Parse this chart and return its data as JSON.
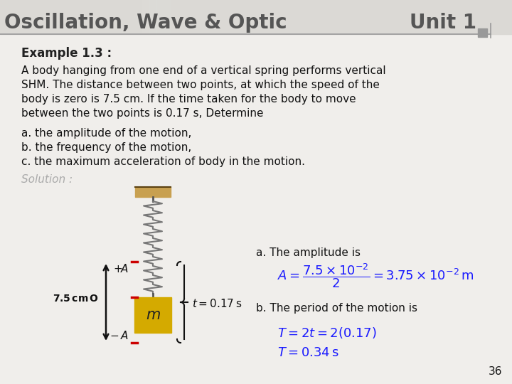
{
  "title_left": "Oscillation, Wave & Optic",
  "title_right": "Unit 1",
  "subtitle": "Example 1.3 :",
  "body_line1": "A body hanging from one end of a vertical spring performs vertical",
  "body_line2": "SHM. The distance between two points, at which the speed of the",
  "body_line3": "body is zero is 7.5 cm. If the time taken for the body to move",
  "body_line4": "between the two points is 0.17 s, Determine",
  "item_a": "a. the amplitude of the motion,",
  "item_b": "b. the frequency of the motion,",
  "item_c": "c. the maximum acceleration of body in the motion.",
  "solution_label": "Solution :",
  "sol_a_label": "a. The amplitude is",
  "sol_b_label": "b. The period of the motion is",
  "page_number": "36",
  "bg_color": "#f0eeeb",
  "header_bg": "#dbd9d5",
  "title_color": "#555555",
  "example_color": "#222222",
  "body_color": "#111111",
  "solution_color": "#aaaaaa",
  "math_color": "#1a1aff",
  "red_mark_color": "#cc0000",
  "spring_color": "#777777",
  "wall_color": "#c8a050",
  "mass_color": "#d4aa00",
  "arrow_color": "#111111",
  "small_sq_color": "#999999"
}
